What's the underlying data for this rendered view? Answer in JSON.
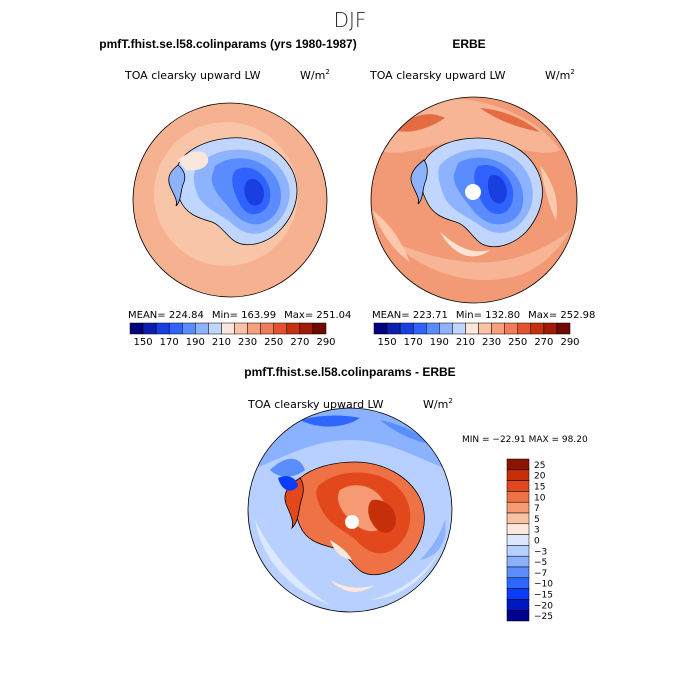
{
  "page": {
    "title": "DJF"
  },
  "colors": {
    "seq": [
      "#00007f",
      "#0a1fb0",
      "#1a3fe0",
      "#2f62ff",
      "#5a8cff",
      "#8db3ff",
      "#c0d6ff",
      "#fae6da",
      "#fbc3a6",
      "#f8a07e",
      "#f17c59",
      "#e3522d",
      "#c6300f",
      "#a01a05",
      "#6e0a00"
    ],
    "diff": [
      "#000090",
      "#0018c0",
      "#0a3cff",
      "#2e66ff",
      "#5a8eff",
      "#8bb2ff",
      "#b8d0ff",
      "#dce8ff",
      "#fde8dc",
      "#f9c2a4",
      "#f59a73",
      "#ef7246",
      "#e2481c",
      "#c5300a",
      "#8e1402"
    ],
    "ocean_model": "#f6b190",
    "land_high": "#3a6dff"
  },
  "chart_data": [
    {
      "type": "heatmap",
      "title": "pmfT.fhist.se.l58.colinparams (yrs 1980-1987)",
      "subtitle": "TOA clearsky upward LW",
      "units": "W/m",
      "units_sup": "2",
      "stats": {
        "mean": "224.84",
        "min": "163.99",
        "max": "251.04",
        "mean_label": "MEAN= ",
        "min_label": "Min= ",
        "max_label": "Max= "
      },
      "colorbar": {
        "levels": [
          150,
          160,
          170,
          180,
          190,
          200,
          210,
          220,
          230,
          240,
          250,
          260,
          270,
          280,
          290,
          300
        ],
        "tick_labels": [
          "150",
          "170",
          "190",
          "210",
          "230",
          "250",
          "270",
          "290"
        ]
      }
    },
    {
      "type": "heatmap",
      "title": "ERBE",
      "subtitle": "TOA clearsky upward LW",
      "units": "W/m",
      "units_sup": "2",
      "stats": {
        "mean": "223.71",
        "min": "132.80",
        "max": "252.98",
        "mean_label": "MEAN= ",
        "min_label": "Min= ",
        "max_label": "Max= "
      },
      "colorbar": {
        "levels": [
          150,
          160,
          170,
          180,
          190,
          200,
          210,
          220,
          230,
          240,
          250,
          260,
          270,
          280,
          290,
          300
        ],
        "tick_labels": [
          "150",
          "170",
          "190",
          "210",
          "230",
          "250",
          "270",
          "290"
        ]
      }
    },
    {
      "type": "heatmap",
      "title": "pmfT.fhist.se.l58.colinparams - ERBE",
      "subtitle": "TOA clearsky upward LW",
      "units": "W/m",
      "units_sup": "2",
      "stats_text": "MIN = −22.91  MAX =  98.20",
      "colorbar": {
        "levels": [
          "25",
          "20",
          "15",
          "10",
          "7",
          "5",
          "3",
          "0",
          "−3",
          "−5",
          "−7",
          "−10",
          "−15",
          "−20",
          "−25"
        ]
      }
    }
  ]
}
